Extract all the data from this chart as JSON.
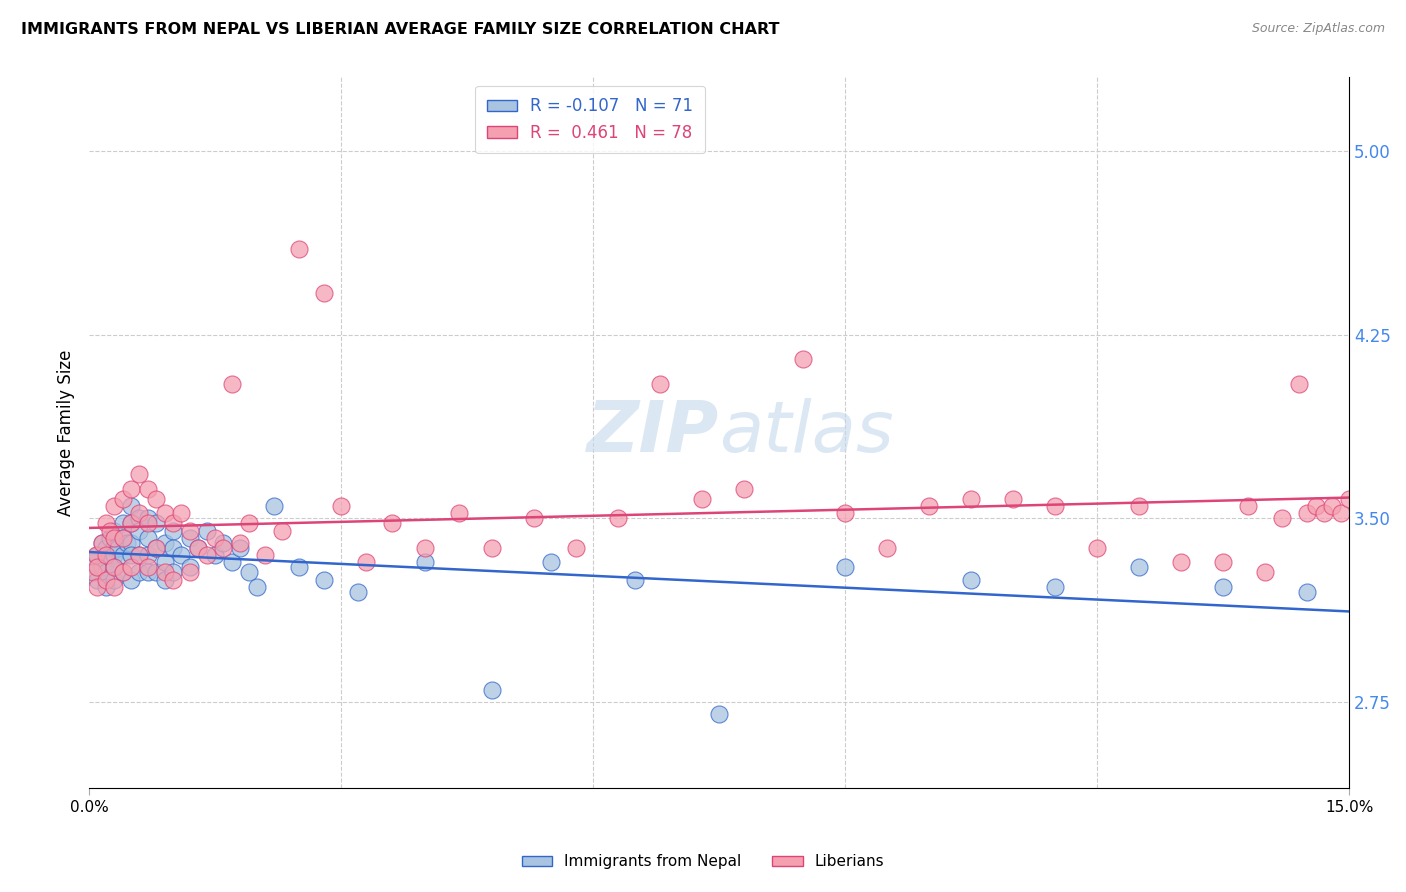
{
  "title": "IMMIGRANTS FROM NEPAL VS LIBERIAN AVERAGE FAMILY SIZE CORRELATION CHART",
  "source": "Source: ZipAtlas.com",
  "ylabel": "Average Family Size",
  "xmin": 0.0,
  "xmax": 0.15,
  "ymin": 2.4,
  "ymax": 5.3,
  "right_yticks": [
    5.0,
    4.25,
    3.5,
    2.75
  ],
  "watermark": "ZIPatlas",
  "legend_r_nepal": "-0.107",
  "legend_n_nepal": "71",
  "legend_r_liberian": "0.461",
  "legend_n_liberian": "78",
  "color_nepal": "#a8c4e0",
  "color_liberian": "#f4a0b0",
  "color_trendline_nepal": "#3366cc",
  "color_trendline_liberian": "#dd4477",
  "nepal_x": [
    0.0005,
    0.0008,
    0.001,
    0.001,
    0.0015,
    0.0015,
    0.002,
    0.002,
    0.002,
    0.002,
    0.0025,
    0.0025,
    0.003,
    0.003,
    0.003,
    0.003,
    0.003,
    0.0035,
    0.004,
    0.004,
    0.004,
    0.004,
    0.0045,
    0.005,
    0.005,
    0.005,
    0.005,
    0.005,
    0.006,
    0.006,
    0.006,
    0.006,
    0.007,
    0.007,
    0.007,
    0.007,
    0.008,
    0.008,
    0.008,
    0.009,
    0.009,
    0.009,
    0.01,
    0.01,
    0.01,
    0.011,
    0.012,
    0.012,
    0.013,
    0.014,
    0.015,
    0.016,
    0.017,
    0.018,
    0.019,
    0.02,
    0.022,
    0.025,
    0.028,
    0.032,
    0.04,
    0.048,
    0.055,
    0.065,
    0.075,
    0.09,
    0.105,
    0.115,
    0.125,
    0.135,
    0.145
  ],
  "nepal_y": [
    3.32,
    3.28,
    3.35,
    3.25,
    3.4,
    3.3,
    3.38,
    3.32,
    3.28,
    3.22,
    3.42,
    3.35,
    3.45,
    3.38,
    3.35,
    3.3,
    3.25,
    3.38,
    3.48,
    3.42,
    3.35,
    3.28,
    3.4,
    3.55,
    3.48,
    3.4,
    3.35,
    3.25,
    3.5,
    3.45,
    3.35,
    3.28,
    3.5,
    3.42,
    3.35,
    3.28,
    3.48,
    3.38,
    3.28,
    3.4,
    3.32,
    3.25,
    3.45,
    3.38,
    3.28,
    3.35,
    3.42,
    3.3,
    3.38,
    3.45,
    3.35,
    3.4,
    3.32,
    3.38,
    3.28,
    3.22,
    3.55,
    3.3,
    3.25,
    3.2,
    3.32,
    2.8,
    3.32,
    3.25,
    2.7,
    3.3,
    3.25,
    3.22,
    3.3,
    3.22,
    3.2
  ],
  "liberian_x": [
    0.0005,
    0.0008,
    0.001,
    0.001,
    0.0015,
    0.002,
    0.002,
    0.002,
    0.0025,
    0.003,
    0.003,
    0.003,
    0.003,
    0.004,
    0.004,
    0.004,
    0.005,
    0.005,
    0.005,
    0.006,
    0.006,
    0.006,
    0.007,
    0.007,
    0.007,
    0.008,
    0.008,
    0.009,
    0.009,
    0.01,
    0.01,
    0.011,
    0.012,
    0.012,
    0.013,
    0.014,
    0.015,
    0.016,
    0.017,
    0.018,
    0.019,
    0.021,
    0.023,
    0.025,
    0.028,
    0.03,
    0.033,
    0.036,
    0.04,
    0.044,
    0.048,
    0.053,
    0.058,
    0.063,
    0.068,
    0.073,
    0.078,
    0.085,
    0.09,
    0.095,
    0.1,
    0.105,
    0.11,
    0.115,
    0.12,
    0.125,
    0.13,
    0.135,
    0.138,
    0.14,
    0.142,
    0.144,
    0.145,
    0.146,
    0.147,
    0.148,
    0.149,
    0.15
  ],
  "liberian_y": [
    3.28,
    3.35,
    3.3,
    3.22,
    3.4,
    3.48,
    3.35,
    3.25,
    3.45,
    3.55,
    3.42,
    3.3,
    3.22,
    3.58,
    3.42,
    3.28,
    3.62,
    3.48,
    3.3,
    3.68,
    3.52,
    3.35,
    3.62,
    3.48,
    3.3,
    3.58,
    3.38,
    3.52,
    3.28,
    3.48,
    3.25,
    3.52,
    3.45,
    3.28,
    3.38,
    3.35,
    3.42,
    3.38,
    4.05,
    3.4,
    3.48,
    3.35,
    3.45,
    4.6,
    4.42,
    3.55,
    3.32,
    3.48,
    3.38,
    3.52,
    3.38,
    3.5,
    3.38,
    3.5,
    4.05,
    3.58,
    3.62,
    4.15,
    3.52,
    3.38,
    3.55,
    3.58,
    3.58,
    3.55,
    3.38,
    3.55,
    3.32,
    3.32,
    3.55,
    3.28,
    3.5,
    4.05,
    3.52,
    3.55,
    3.52,
    3.55,
    3.52,
    3.58
  ]
}
